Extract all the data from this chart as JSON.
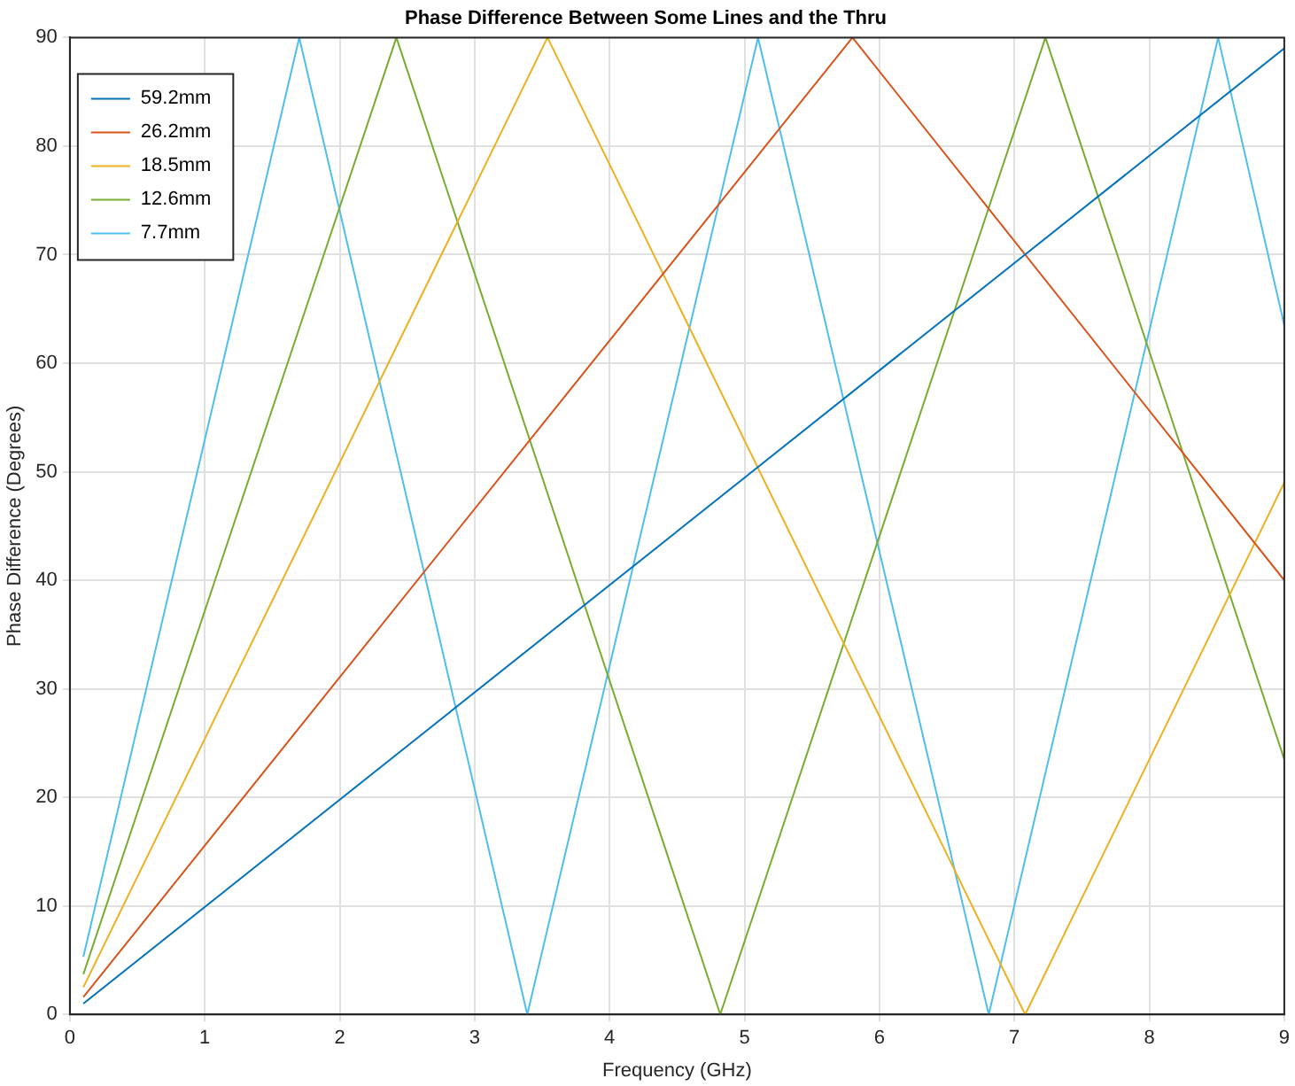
{
  "chart_data": {
    "type": "line",
    "title": "Phase Difference Between Some Lines and the Thru",
    "xlabel": "Frequency (GHz)",
    "ylabel": "Phase Difference (Degrees)",
    "xlim": [
      0,
      9
    ],
    "xticks": [
      0,
      1,
      2,
      3,
      4,
      5,
      6,
      7,
      8,
      9
    ],
    "ylim": [
      0,
      90
    ],
    "yticks": [
      0,
      10,
      20,
      30,
      40,
      50,
      60,
      70,
      80,
      90
    ],
    "grid": true,
    "legend": "top left",
    "marker": "none",
    "line_style": "solid",
    "series": [
      {
        "name": "59.2mm",
        "color": "#0072bd",
        "x": [
          0.1,
          9
        ],
        "values": [
          1,
          89
        ]
      },
      {
        "name": "26.2mm",
        "color": "#d95319",
        "x": [
          0.1,
          5.8,
          9
        ],
        "values": [
          1.6,
          90,
          40
        ]
      },
      {
        "name": "18.5mm",
        "color": "#edb120",
        "x": [
          0.1,
          3.54,
          7.08,
          9
        ],
        "values": [
          2.5,
          90,
          0,
          49
        ]
      },
      {
        "name": "12.6mm",
        "color": "#77ac30",
        "x": [
          0.1,
          2.42,
          4.82,
          7.23,
          9
        ],
        "values": [
          3.7,
          90,
          0,
          90,
          23.5
        ]
      },
      {
        "name": "7.7mm",
        "color": "#4dbeee",
        "x": [
          0.1,
          1.7,
          3.39,
          5.1,
          6.81,
          8.51,
          9
        ],
        "values": [
          5.3,
          90,
          0,
          90,
          0,
          90,
          63.5
        ]
      }
    ]
  }
}
